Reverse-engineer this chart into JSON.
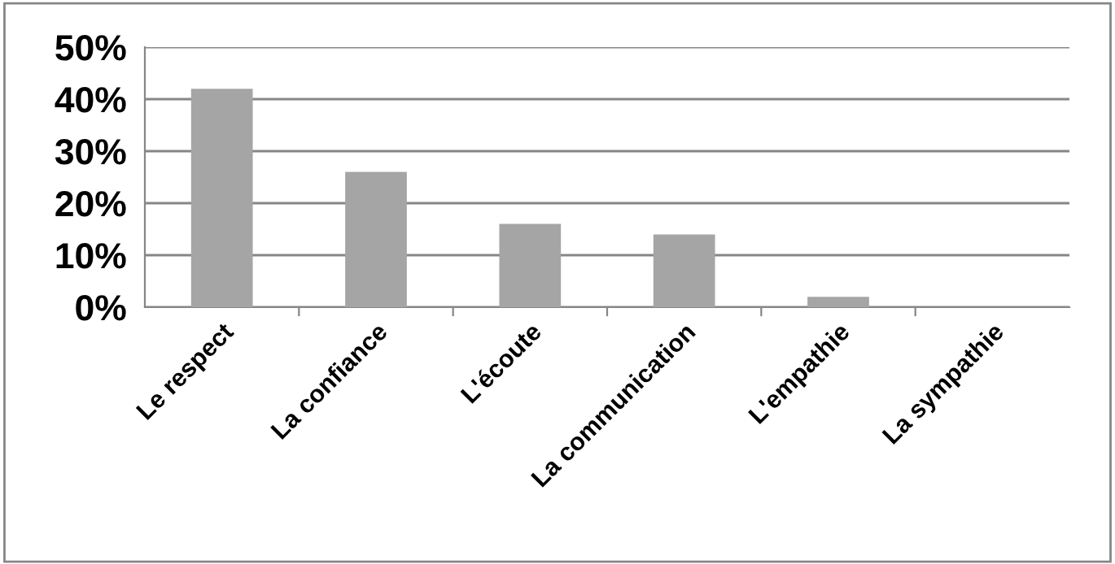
{
  "chart_data": {
    "type": "bar",
    "categories": [
      "Le respect",
      "La confiance",
      "L'écoute",
      "La communication",
      "L'empathie",
      "La sympathie"
    ],
    "values": [
      42,
      26,
      16,
      14,
      2,
      0
    ],
    "color": "#a5a5a5",
    "ylim": [
      0,
      50
    ],
    "yticks": [
      {
        "value": 0,
        "label": "0%"
      },
      {
        "value": 10,
        "label": "10%"
      },
      {
        "value": 20,
        "label": "20%"
      },
      {
        "value": 30,
        "label": "30%"
      },
      {
        "value": 40,
        "label": "40%"
      },
      {
        "value": 50,
        "label": "50%"
      }
    ],
    "grid": "y"
  }
}
